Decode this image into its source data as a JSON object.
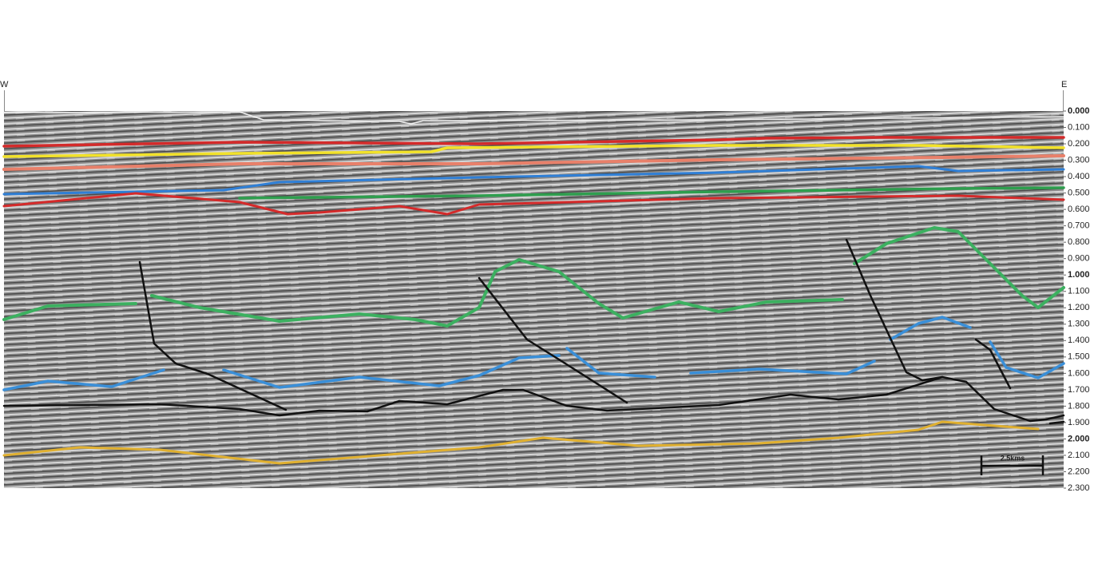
{
  "header": {
    "west": "W",
    "east": "E"
  },
  "axis": {
    "lim": [
      0,
      2.3
    ],
    "ticks": [
      {
        "value": 0,
        "label": "0.000"
      },
      {
        "value": 0.1,
        "label": "0.100"
      },
      {
        "value": 0.2,
        "label": "0.200"
      },
      {
        "value": 0.3,
        "label": "0.300"
      },
      {
        "value": 0.4,
        "label": "0.400"
      },
      {
        "value": 0.5,
        "label": "0.500"
      },
      {
        "value": 0.6,
        "label": "0.600"
      },
      {
        "value": 0.7,
        "label": "0.700"
      },
      {
        "value": 0.8,
        "label": "0.800"
      },
      {
        "value": 0.9,
        "label": "0.900"
      },
      {
        "value": 1,
        "label": "1.000"
      },
      {
        "value": 1.1,
        "label": "1.100"
      },
      {
        "value": 1.2,
        "label": "1.200"
      },
      {
        "value": 1.3,
        "label": "1.300"
      },
      {
        "value": 1.4,
        "label": "1.400"
      },
      {
        "value": 1.5,
        "label": "1.500"
      },
      {
        "value": 1.6,
        "label": "1.600"
      },
      {
        "value": 1.7,
        "label": "1.700"
      },
      {
        "value": 1.8,
        "label": "1.800"
      },
      {
        "value": 1.9,
        "label": "1.900"
      },
      {
        "value": 2,
        "label": "2.000"
      },
      {
        "value": 2.1,
        "label": "2.100"
      },
      {
        "value": 2.2,
        "label": "2.200"
      },
      {
        "value": 2.3,
        "label": "2.300"
      }
    ]
  },
  "scale_bar": {
    "label": "2.5kms"
  }
}
